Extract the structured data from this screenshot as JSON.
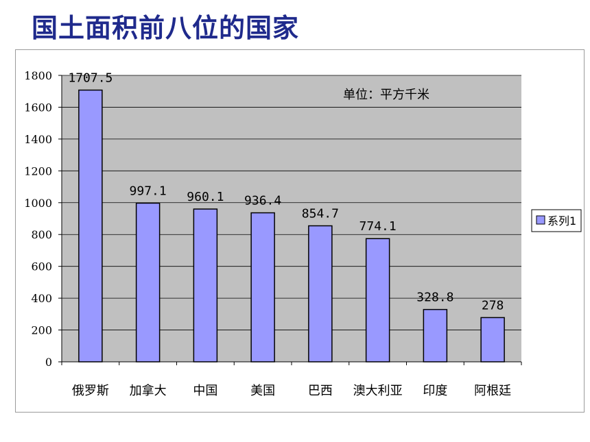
{
  "page": {
    "title": "国土面积前八位的国家"
  },
  "chart_data": {
    "type": "bar",
    "categories": [
      "俄罗斯",
      "加拿大",
      "中国",
      "美国",
      "巴西",
      "澳大利亚",
      "印度",
      "阿根廷"
    ],
    "series": [
      {
        "name": "系列1",
        "values": [
          1707.5,
          997.1,
          960.1,
          936.4,
          854.7,
          774.1,
          328.8,
          278
        ]
      }
    ],
    "data_labels": [
      "1707.5",
      "997.1",
      "960.1",
      "936.4",
      "854.7",
      "774.1",
      "328.8",
      "278"
    ],
    "ylim": [
      0,
      1800
    ],
    "yticks": [
      0,
      200,
      400,
      600,
      800,
      1000,
      1200,
      1400,
      1600,
      1800
    ],
    "annotation": "单位：平方千米",
    "grid": true,
    "legend": "right",
    "colors": {
      "plot_bg": "#c0c0c0",
      "bar": "#9999ff",
      "bar_edge": "#000000"
    }
  }
}
